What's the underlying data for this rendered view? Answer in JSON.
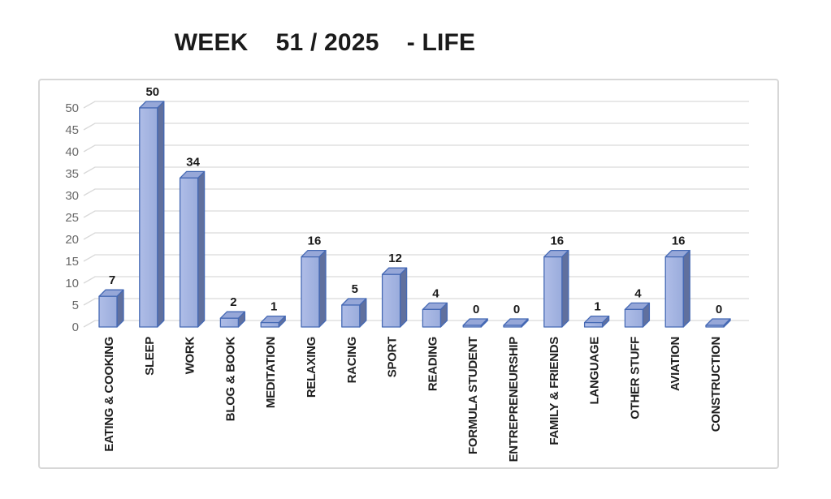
{
  "title": "WEEK    51 / 2025    - LIFE",
  "chart_data": {
    "type": "bar",
    "subtype": "3d-column",
    "title": "WEEK 51 / 2025 - LIFE",
    "categories": [
      "EATING & COOKING",
      "SLEEP",
      "WORK",
      "BLOG & BOOK",
      "MEDITATION",
      "RELAXING",
      "RACING",
      "SPORT",
      "READING",
      "FORMULA STUDENT",
      "ENTREPRENEURSHIP",
      "FAMILY & FRIENDS",
      "LANGUAGE",
      "OTHER STUFF",
      "AVIATION",
      "CONSTRUCTION"
    ],
    "values": [
      7,
      50,
      34,
      2,
      1,
      16,
      5,
      12,
      4,
      0,
      0,
      16,
      1,
      4,
      16,
      0
    ],
    "data_labels_shown": true,
    "xlabel": "",
    "ylabel": "",
    "y_ticks": [
      0,
      5,
      10,
      15,
      20,
      25,
      30,
      35,
      40,
      45,
      50
    ],
    "ylim": [
      0,
      50
    ],
    "grid": true,
    "legend": "none",
    "colors": {
      "bar_front_light": "#AFBDE7",
      "bar_front_dark": "#9AACDC",
      "bar_top": "#96A7D8",
      "bar_side": "#60709E",
      "bar_border": "#4569B4",
      "gridline": "#D9D9D9",
      "tick_label": "#696969",
      "data_label": "#1A1A1A",
      "category_label": "#1F1F1F",
      "title": "#1B1B1B",
      "frame_border": "#D7D7D7"
    }
  }
}
